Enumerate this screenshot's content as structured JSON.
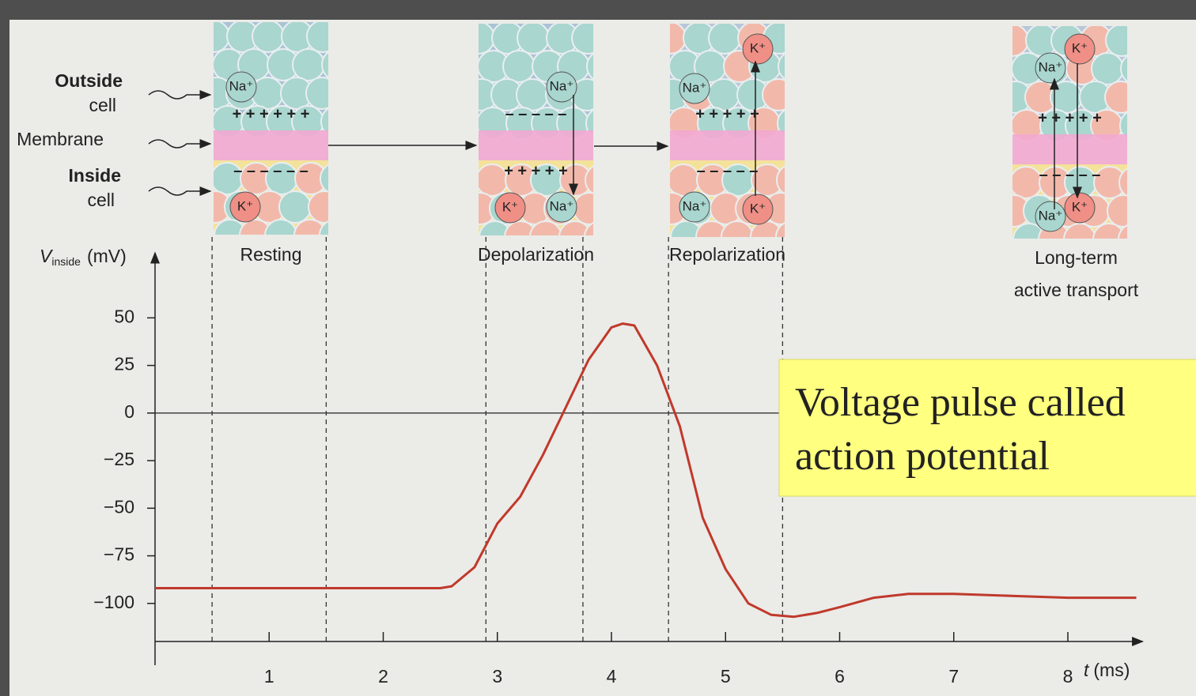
{
  "labels": {
    "outside": "Outside",
    "outside_sub": "cell",
    "membrane": "Membrane",
    "inside": "Inside",
    "inside_sub": "cell"
  },
  "panels": [
    {
      "label": "Resting",
      "top_charges": "+ + + + + +",
      "bottom_charges": "– – – – – –",
      "ions": [
        "Na⁺",
        "K⁺"
      ]
    },
    {
      "label": "Depolarization",
      "top_charges": "– – – –     –",
      "bottom_charges": "+ + + +     +",
      "ions": [
        "Na⁺",
        "K⁺",
        "Na⁺"
      ]
    },
    {
      "label": "Repolarization",
      "top_charges": "+ + + +     +",
      "bottom_charges": "– – – –     –",
      "ions": [
        "K⁺",
        "Na⁺",
        "Na⁺",
        "K⁺"
      ]
    },
    {
      "label": [
        "Long-term",
        "active transport"
      ],
      "top_charges": "+ +    + +   +",
      "bottom_charges": "– –    – –   –",
      "ions": [
        "Na⁺",
        "K⁺",
        "Na⁺",
        "K⁺"
      ]
    }
  ],
  "callout": [
    "Voltage pulse called",
    "action potential"
  ],
  "chart_data": {
    "type": "line",
    "ylabel": [
      "V",
      "inside",
      "(mV)"
    ],
    "xlabel": [
      "t",
      "(ms)"
    ],
    "x": [
      0,
      0.5,
      1,
      1.5,
      2,
      2.5,
      2.6,
      2.8,
      3,
      3.2,
      3.4,
      3.6,
      3.8,
      4,
      4.1,
      4.2,
      4.4,
      4.6,
      4.8,
      5,
      5.2,
      5.4,
      5.6,
      5.8,
      6,
      6.3,
      6.6,
      7,
      7.5,
      8,
      8.6
    ],
    "series": [
      {
        "name": "V",
        "color": "#c0392b",
        "values": [
          -92,
          -92,
          -92,
          -92,
          -92,
          -92,
          -91,
          -81,
          -58,
          -44,
          -22,
          3,
          28,
          45,
          47,
          46,
          25,
          -7,
          -55,
          -82,
          -100,
          -106,
          -107,
          -105,
          -102,
          -97,
          -95,
          -95,
          -96,
          -97,
          -97
        ]
      }
    ],
    "markers": [
      0.5,
      1.5,
      2.9,
      3.75,
      4.5,
      5.5
    ],
    "xlim": [
      0,
      8.6
    ],
    "ylim": [
      -120,
      85
    ],
    "xticks": [
      1,
      2,
      3,
      4,
      5,
      6,
      7,
      8
    ],
    "yticks": [
      50,
      25,
      0,
      {
        "value": -25,
        "label": "−25"
      },
      {
        "value": -50,
        "label": "−50"
      },
      {
        "value": -75,
        "label": "−75"
      },
      {
        "value": -100,
        "label": "−100"
      }
    ]
  }
}
